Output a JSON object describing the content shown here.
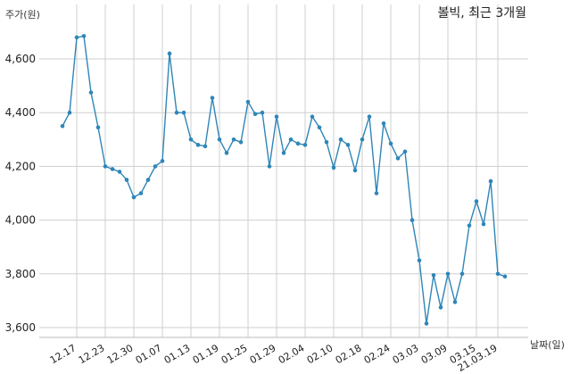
{
  "chart_data": {
    "type": "line",
    "title": "볼빅, 최근 3개월",
    "ylabel": "주가(원)",
    "xlabel": "날짜(일)",
    "ylim": [
      3600,
      4800
    ],
    "yticks": [
      3600,
      3800,
      4000,
      4200,
      4400,
      4600
    ],
    "ytick_labels": [
      "3,600",
      "3,800",
      "4,000",
      "4,200",
      "4,400",
      "4,600"
    ],
    "xtick_labels": [
      "12.17",
      "12.23",
      "12.30",
      "01.07",
      "01.13",
      "01.19",
      "01.25",
      "01.29",
      "02.04",
      "02.10",
      "02.18",
      "02.24",
      "03.03",
      "03.09",
      "03.15",
      "21.03.19"
    ],
    "xtick_indices": [
      2,
      6,
      10,
      14,
      18,
      22,
      26,
      30,
      34,
      38,
      42,
      46,
      50,
      54,
      58,
      61
    ],
    "grid": true,
    "series": [
      {
        "color": "#2e86b8",
        "values": [
          4350,
          4400,
          4680,
          4685,
          4475,
          4345,
          4200,
          4190,
          4180,
          4150,
          4085,
          4100,
          4150,
          4200,
          4220,
          4620,
          4400,
          4400,
          4300,
          4280,
          4275,
          4455,
          4300,
          4250,
          4300,
          4290,
          4440,
          4395,
          4400,
          4200,
          4385,
          4250,
          4300,
          4285,
          4280,
          4385,
          4345,
          4290,
          4195,
          4300,
          4280,
          4185,
          4300,
          4385,
          4100,
          4360,
          4285,
          4230,
          4255,
          4000,
          3850,
          3615,
          3795,
          3675,
          3800,
          3695,
          3800,
          3980,
          4070,
          3985,
          4145,
          3800,
          3790
        ]
      }
    ]
  }
}
